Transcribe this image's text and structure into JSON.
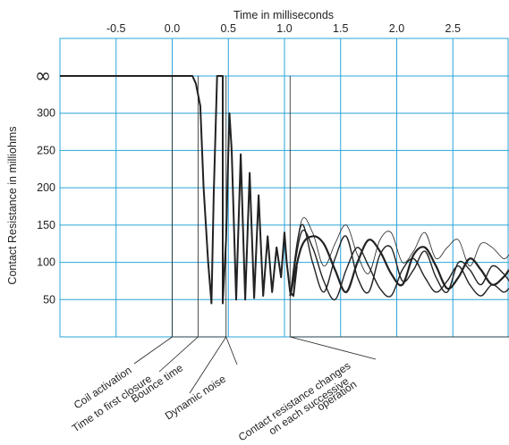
{
  "chart_data": {
    "type": "line",
    "title": "",
    "xlabel": "Time in milliseconds",
    "ylabel": "Contact Resistance in milliohms",
    "x_ticks": [
      "-0.5",
      "0.0",
      "0.5",
      "1.0",
      "1.5",
      "2.0",
      "2.5"
    ],
    "x_tick_values": [
      -0.5,
      0.0,
      0.5,
      1.0,
      1.5,
      2.0,
      2.5
    ],
    "y_ticks": [
      "∞",
      "300",
      "250",
      "200",
      "150",
      "100",
      "50"
    ],
    "y_tick_values": [
      350,
      300,
      250,
      200,
      150,
      100,
      50
    ],
    "xlim": [
      -1.0,
      3.0
    ],
    "ylim": [
      0,
      350
    ],
    "grid": true,
    "infinity_level": 350,
    "activation_trace": {
      "x": [
        -1.0,
        0.0,
        0.0,
        0.18,
        0.21,
        0.25,
        0.28,
        0.32,
        0.35,
        0.37,
        0.4,
        0.4,
        0.45,
        0.45,
        0.48,
        0.5,
        0.51,
        0.53,
        0.57,
        0.61,
        0.65,
        0.69,
        0.73,
        0.77,
        0.81,
        0.85,
        0.89,
        0.93,
        0.97,
        1.0,
        1.02,
        1.05,
        1.08,
        1.11
      ],
      "y": [
        350,
        350,
        350,
        350,
        340,
        310,
        200,
        100,
        45,
        190,
        350,
        350,
        350,
        45,
        130,
        250,
        300,
        250,
        50,
        245,
        50,
        220,
        52,
        190,
        55,
        135,
        60,
        120,
        80,
        140,
        100,
        60,
        55,
        95
      ]
    },
    "successive_operations": [
      {
        "x": [
          1.05,
          1.15,
          1.25,
          1.35,
          1.45,
          1.55,
          1.65,
          1.75,
          1.85,
          1.95,
          2.05,
          2.15,
          2.25,
          2.35,
          2.45,
          2.55,
          2.65,
          2.75,
          2.85,
          2.95,
          3.0
        ],
        "y": [
          55,
          120,
          135,
          125,
          90,
          60,
          100,
          130,
          115,
          85,
          70,
          110,
          120,
          95,
          65,
          80,
          105,
          90,
          70,
          80,
          90
        ]
      },
      {
        "x": [
          1.05,
          1.15,
          1.25,
          1.35,
          1.45,
          1.55,
          1.65,
          1.75,
          1.85,
          1.95,
          2.05,
          2.15,
          2.25,
          2.35,
          2.45,
          2.55,
          2.65,
          2.75,
          2.85,
          2.95,
          3.0
        ],
        "y": [
          55,
          155,
          140,
          95,
          125,
          150,
          110,
          85,
          130,
          140,
          100,
          115,
          140,
          105,
          120,
          130,
          95,
          125,
          120,
          105,
          110
        ]
      },
      {
        "x": [
          1.05,
          1.15,
          1.25,
          1.35,
          1.45,
          1.55,
          1.65,
          1.75,
          1.85,
          1.95,
          2.05,
          2.15,
          2.25,
          2.35,
          2.45,
          2.55,
          2.65,
          2.75,
          2.85,
          2.95,
          3.0
        ],
        "y": [
          55,
          150,
          100,
          60,
          105,
          135,
          80,
          60,
          110,
          120,
          75,
          90,
          115,
          80,
          60,
          100,
          90,
          70,
          95,
          85,
          75
        ]
      },
      {
        "x": [
          1.05,
          1.15,
          1.25,
          1.35,
          1.45,
          1.55,
          1.65,
          1.75,
          1.85,
          1.95,
          2.05,
          2.15,
          2.25,
          2.35,
          2.45,
          2.55,
          2.65,
          2.75,
          2.85,
          2.95,
          3.0
        ],
        "y": [
          55,
          140,
          120,
          75,
          50,
          90,
          120,
          95,
          65,
          55,
          90,
          105,
          80,
          60,
          75,
          95,
          70,
          55,
          70,
          60,
          65
        ]
      }
    ],
    "annotations": [
      "Coil activation",
      "Time to first closure",
      "Bounce time",
      "Dynamic noise",
      "Contact resistance changes",
      "on each successive",
      "operation"
    ]
  }
}
